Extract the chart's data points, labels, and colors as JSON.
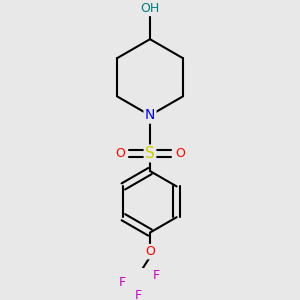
{
  "background_color": "#e8e8e8",
  "atom_colors": {
    "C": "#000000",
    "N": "#0000ff",
    "O": "#ff0000",
    "S": "#cccc00",
    "F": "#cc00cc",
    "H": "#008080"
  },
  "bond_color": "#000000",
  "bond_width": 1.5,
  "figsize": [
    3.0,
    3.0
  ],
  "dpi": 100
}
